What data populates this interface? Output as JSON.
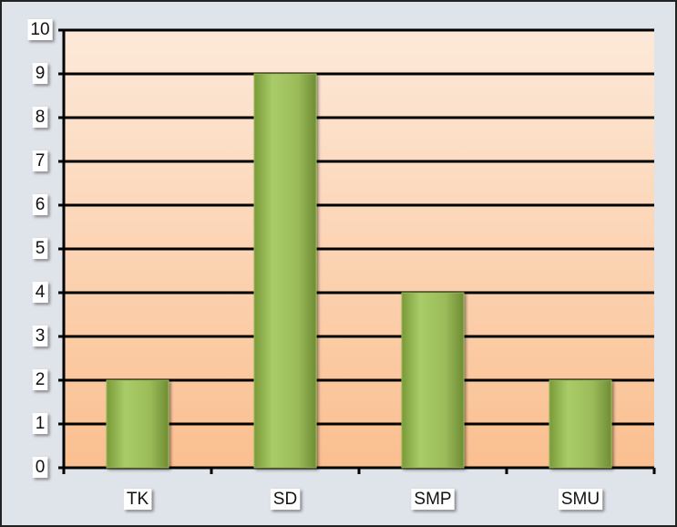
{
  "chart_data": {
    "type": "bar",
    "categories": [
      "TK",
      "SD",
      "SMP",
      "SMU"
    ],
    "values": [
      2,
      9,
      4,
      2
    ],
    "color": "#9bbb59",
    "ylim": [
      0,
      10
    ],
    "yticks": [
      0,
      1,
      2,
      3,
      4,
      5,
      6,
      7,
      8,
      9,
      10
    ],
    "grid": true
  }
}
